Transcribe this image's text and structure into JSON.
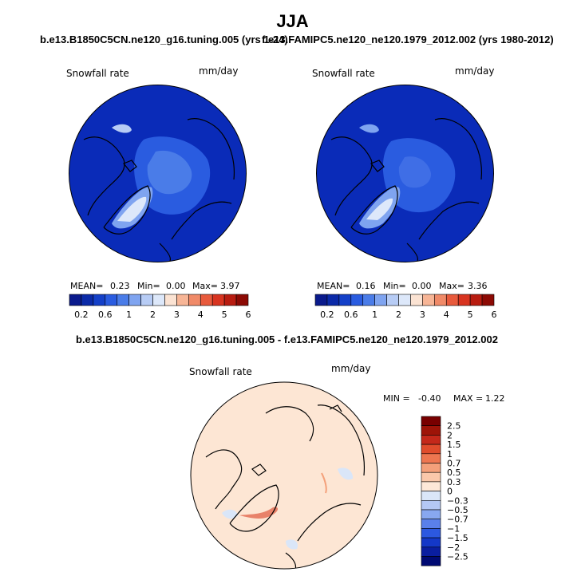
{
  "season": "JJA",
  "top_left": {
    "case": "b.e13.B1850C5CN.ne120_g16.tuning.005 (yrs 1-24)",
    "variable": "Snowfall rate",
    "units": "mm/day",
    "mean_label": "MEAN=",
    "mean": "0.23",
    "min_label": "Min=",
    "min": "0.00",
    "max_label": "Max=",
    "max": "3.97"
  },
  "top_right": {
    "case": "f.e13.FAMIPC5.ne120_ne120.1979_2012.002 (yrs 1980-2012)",
    "variable": "Snowfall rate",
    "units": "mm/day",
    "mean_label": "MEAN=",
    "mean": "0.16",
    "min_label": "Min=",
    "min": "0.00",
    "max_label": "Max=",
    "max": "3.36"
  },
  "diff": {
    "title": "b.e13.B1850C5CN.ne120_g16.tuning.005 - f.e13.FAMIPC5.ne120_ne120.1979_2012.002",
    "variable": "Snowfall rate",
    "units": "mm/day",
    "min_label": "MIN =",
    "min": "-0.40",
    "max_label": "MAX =",
    "max": "1.22"
  },
  "colors": {
    "abs_scale": [
      "#0a1a8c",
      "#0b2aa8",
      "#1440c8",
      "#2a5ce0",
      "#4a7ce8",
      "#7fa4f0",
      "#b7ccf5",
      "#dde8fa",
      "#fbe3d3",
      "#f7b596",
      "#f08a68",
      "#e85a3c",
      "#d83420",
      "#b81c10",
      "#8c0a04"
    ],
    "diff_scale": [
      "#000a73",
      "#0a1ea0",
      "#1438c8",
      "#2c58e0",
      "#5a80ea",
      "#88a8f0",
      "#b4c8f4",
      "#dae6f8",
      "#fde8d8",
      "#fac8aa",
      "#f4a07a",
      "#ee7650",
      "#e04c2c",
      "#c4281a",
      "#9e1408",
      "#780000"
    ],
    "ocean": "#0a2bb8",
    "diff_background": "#fde6d4",
    "coast": "#000000"
  },
  "chart_data": [
    {
      "type": "heatmap",
      "title": "b.e13.B1850C5CN.ne120_g16.tuning.005 (yrs 1-24)",
      "projection": "polar stereographic, north pole",
      "variable": "Snowfall rate",
      "units": "mm/day",
      "colorbar_ticks": [
        "0.2",
        "0.6",
        "1",
        "2",
        "3",
        "4",
        "5",
        "6"
      ],
      "stats": {
        "mean": 0.23,
        "min": 0.0,
        "max": 3.97
      }
    },
    {
      "type": "heatmap",
      "title": "f.e13.FAMIPC5.ne120_ne120.1979_2012.002 (yrs 1980-2012)",
      "projection": "polar stereographic, north pole",
      "variable": "Snowfall rate",
      "units": "mm/day",
      "colorbar_ticks": [
        "0.2",
        "0.6",
        "1",
        "2",
        "3",
        "4",
        "5",
        "6"
      ],
      "stats": {
        "mean": 0.16,
        "min": 0.0,
        "max": 3.36
      }
    },
    {
      "type": "heatmap",
      "title": "b.e13.B1850C5CN.ne120_g16.tuning.005 - f.e13.FAMIPC5.ne120_ne120.1979_2012.002",
      "projection": "polar stereographic, north pole",
      "variable": "Snowfall rate",
      "units": "mm/day",
      "colorbar_ticks": [
        "2.5",
        "2",
        "1.5",
        "1",
        "0.7",
        "0.5",
        "0.3",
        "0",
        "−0.3",
        "−0.5",
        "−0.7",
        "−1",
        "−1.5",
        "−2",
        "−2.5"
      ],
      "stats": {
        "min": -0.4,
        "max": 1.22
      }
    }
  ]
}
